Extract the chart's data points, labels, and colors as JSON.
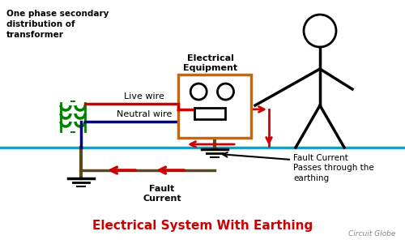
{
  "title": "Electrical System With Earthing",
  "title_color": "#cc0000",
  "title_fontsize": 11,
  "watermark": "Circuit Globe",
  "bg_color": "#ffffff",
  "ground_color": "#5a4a1a",
  "live_wire_color": "#cc0000",
  "neutral_wire_color": "#00008B",
  "transformer_color": "#008000",
  "equipment_box_color": "#cc6600",
  "ground_line_color": "#00aacc",
  "fault_arrow_color": "#cc0000",
  "label_live": "Live wire",
  "label_neutral": "Neutral wire",
  "label_fault_current": "Fault\nCurrent",
  "label_fault_passes": "Fault Current\nPasses through the\nearthing",
  "label_transformer": "One phase secondary\ndistribution of\ntransformer",
  "label_equipment": "Electrical\nEquipment"
}
